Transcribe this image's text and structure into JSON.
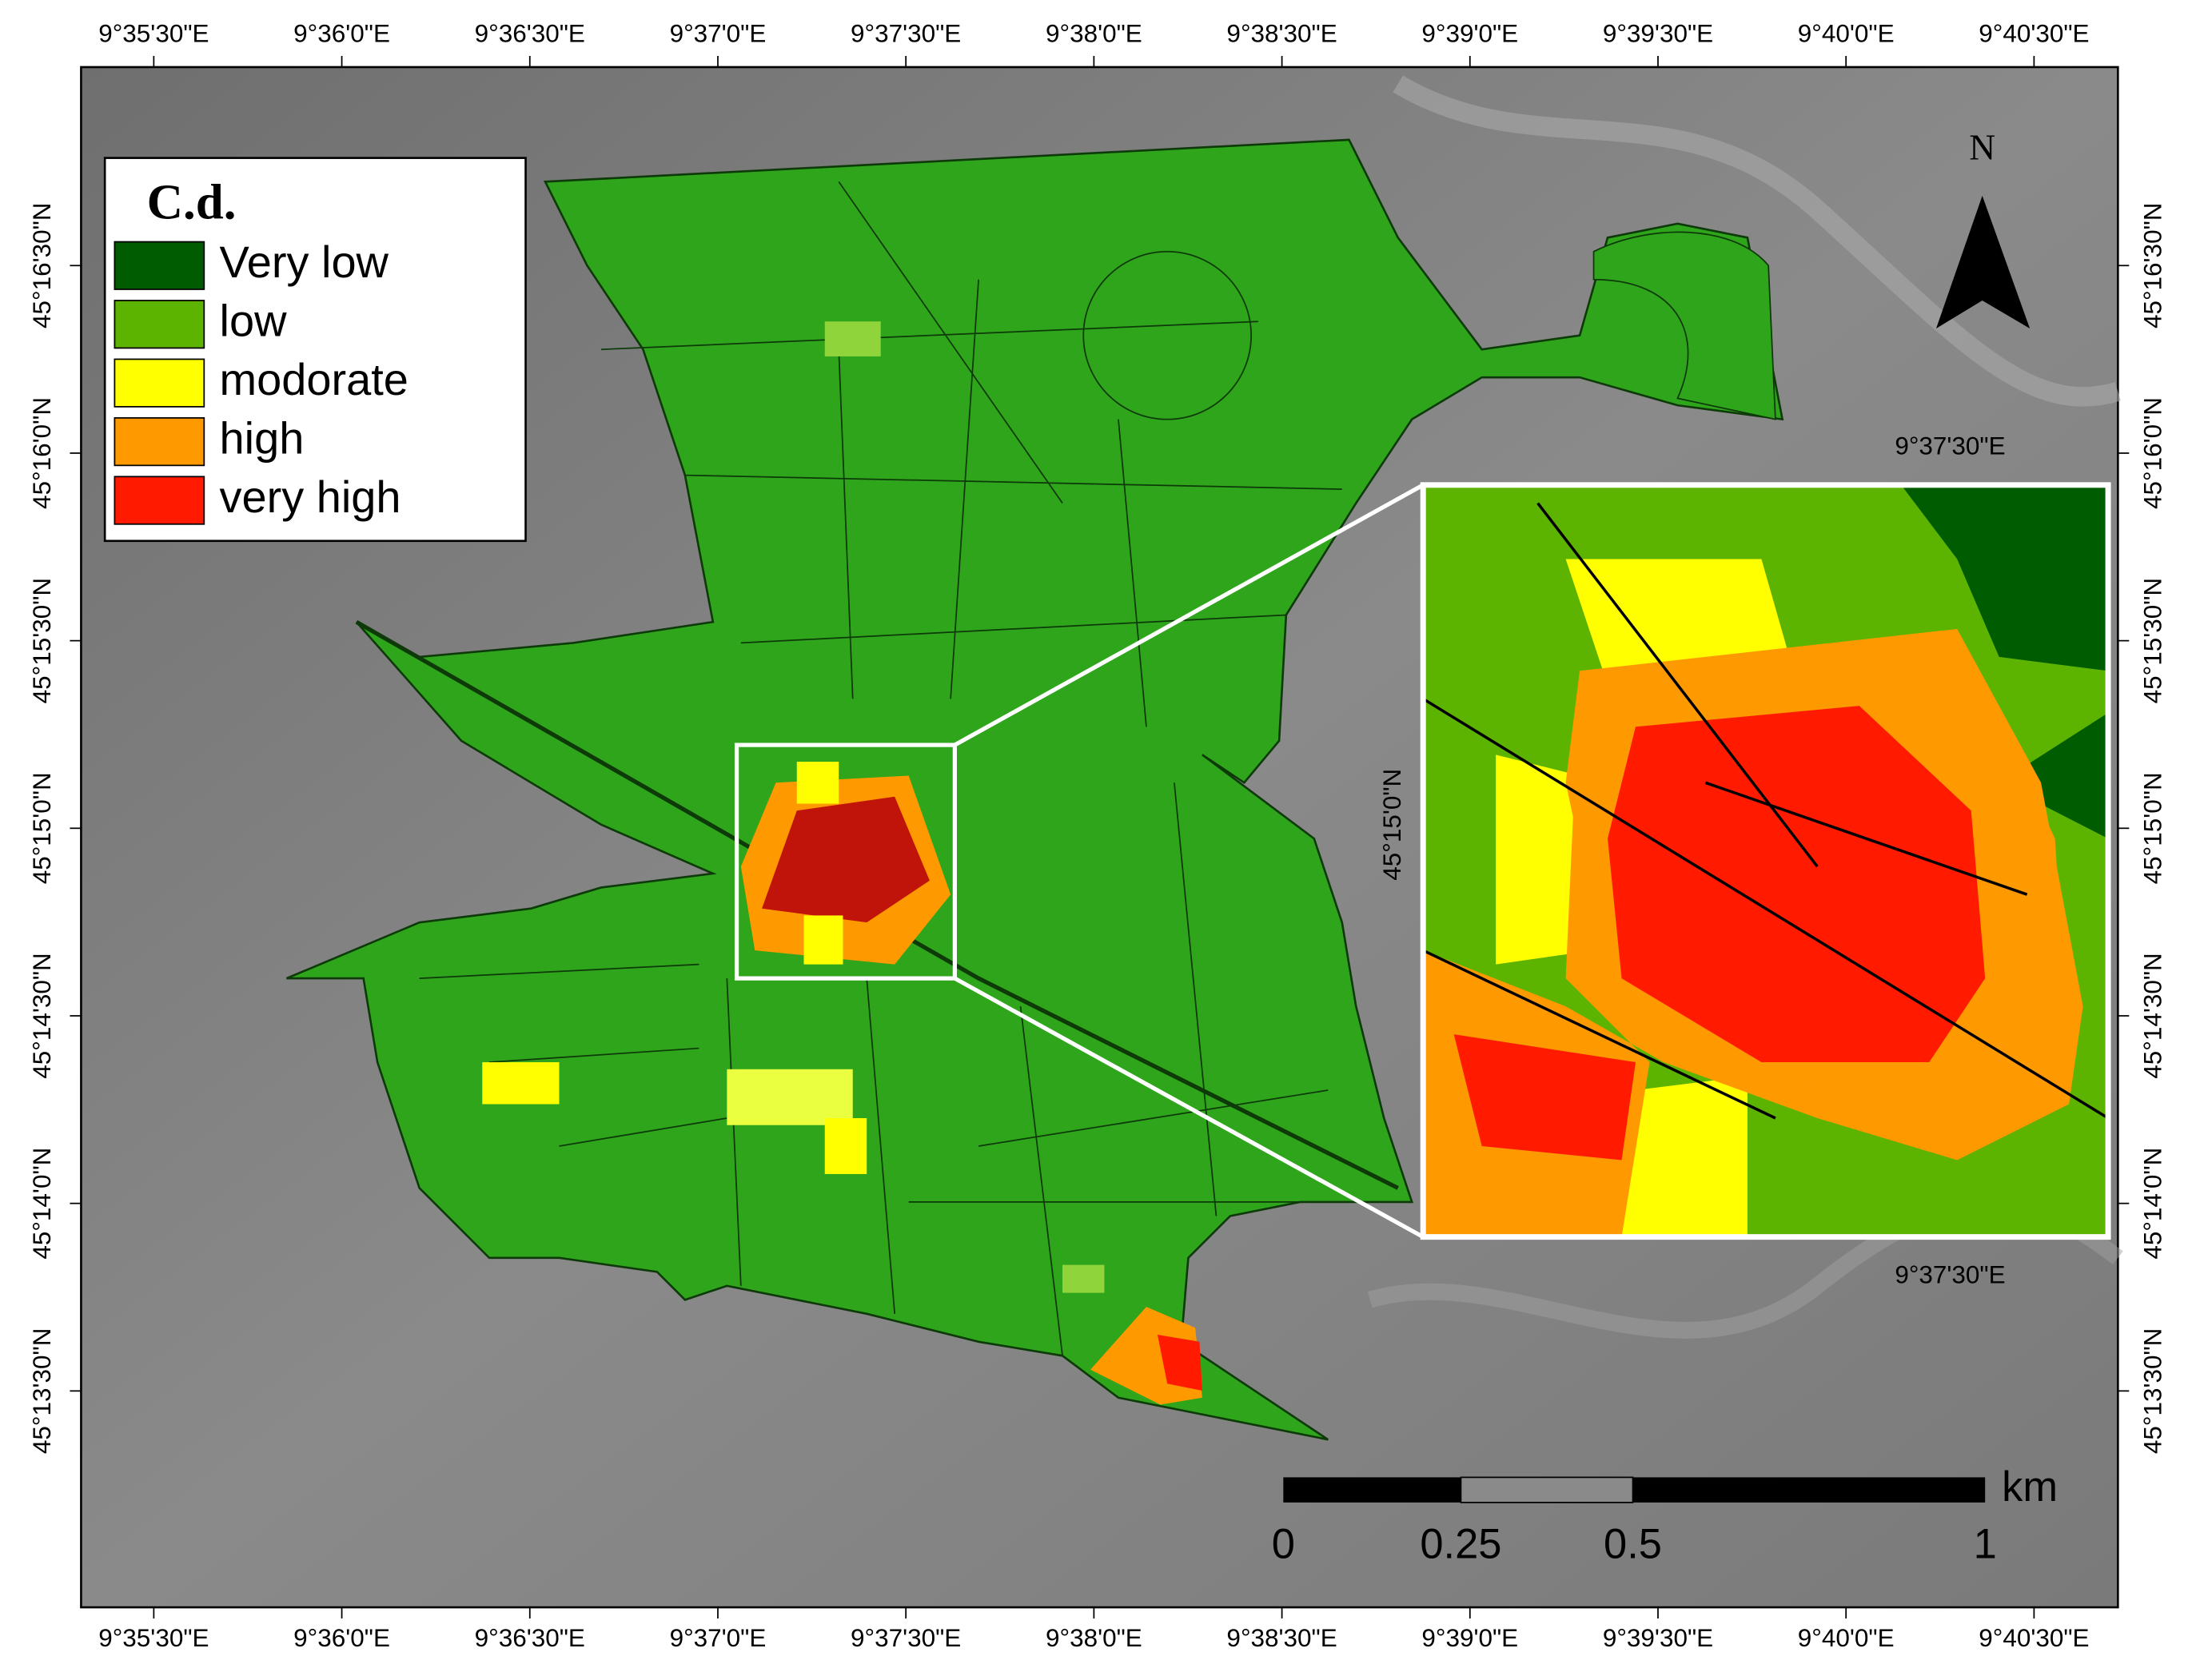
{
  "map": {
    "x_ticks": [
      "9°35'30\"E",
      "9°36'0\"E",
      "9°36'30\"E",
      "9°37'0\"E",
      "9°37'30\"E",
      "9°38'0\"E",
      "9°38'30\"E",
      "9°39'0\"E",
      "9°39'30\"E",
      "9°40'0\"E",
      "9°40'30\"E"
    ],
    "y_ticks": [
      "45°16'30\"N",
      "45°16'0\"N",
      "45°15'30\"N",
      "45°15'0\"N",
      "45°14'30\"N",
      "45°14'0\"N",
      "45°13'30\"N"
    ],
    "legend": {
      "title": "C.d.",
      "items": [
        {
          "label": "Very low",
          "color": "#005c00"
        },
        {
          "label": "low",
          "color": "#5cb300"
        },
        {
          "label": "modorate",
          "color": "#ffff00"
        },
        {
          "label": "high",
          "color": "#ff9900"
        },
        {
          "label": "very high",
          "color": "#ff1a00"
        }
      ]
    },
    "north_label": "N",
    "scale_bar": {
      "labels": [
        "0",
        "0.25",
        "0.5",
        "1"
      ],
      "unit": "km"
    },
    "inset": {
      "x_label": "9°37'30\"E",
      "y_label": "45°15'0\"N"
    }
  }
}
